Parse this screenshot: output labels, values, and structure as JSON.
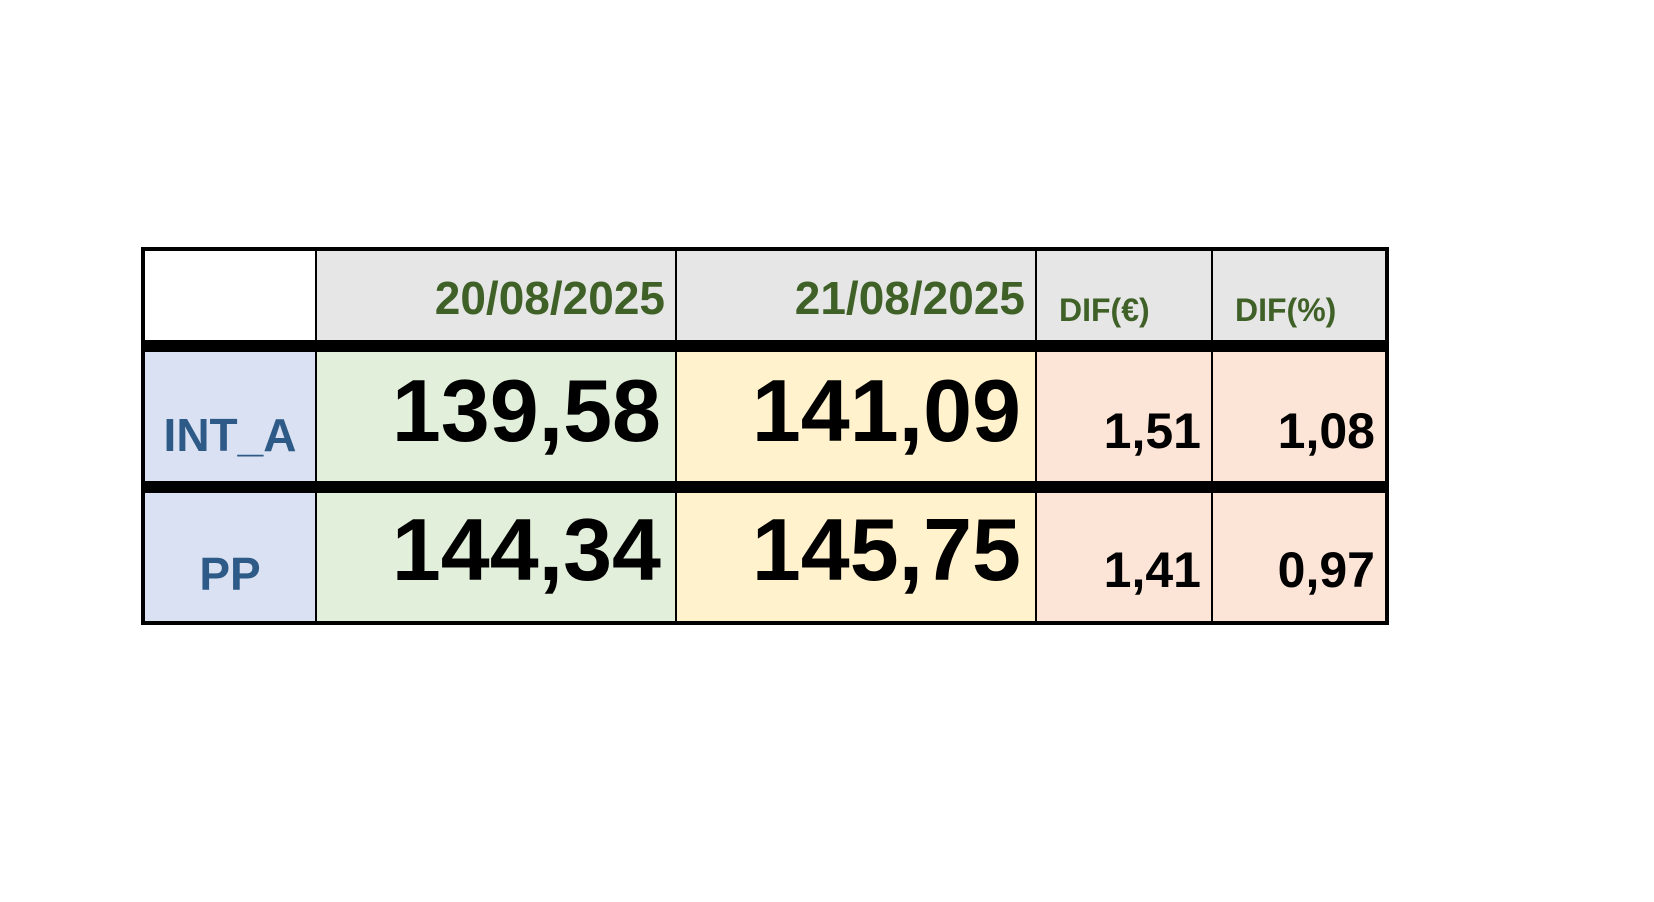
{
  "table": {
    "columns": [
      "20/08/2025",
      "21/08/2025",
      "DIF(€)",
      "DIF(%)"
    ],
    "rows": [
      {
        "label": "INT_A",
        "cells": [
          "139,58",
          "141,09",
          "1,51",
          "1,08"
        ]
      },
      {
        "label": "PP",
        "cells": [
          "144,34",
          "145,75",
          "1,41",
          "0,97"
        ]
      }
    ]
  }
}
